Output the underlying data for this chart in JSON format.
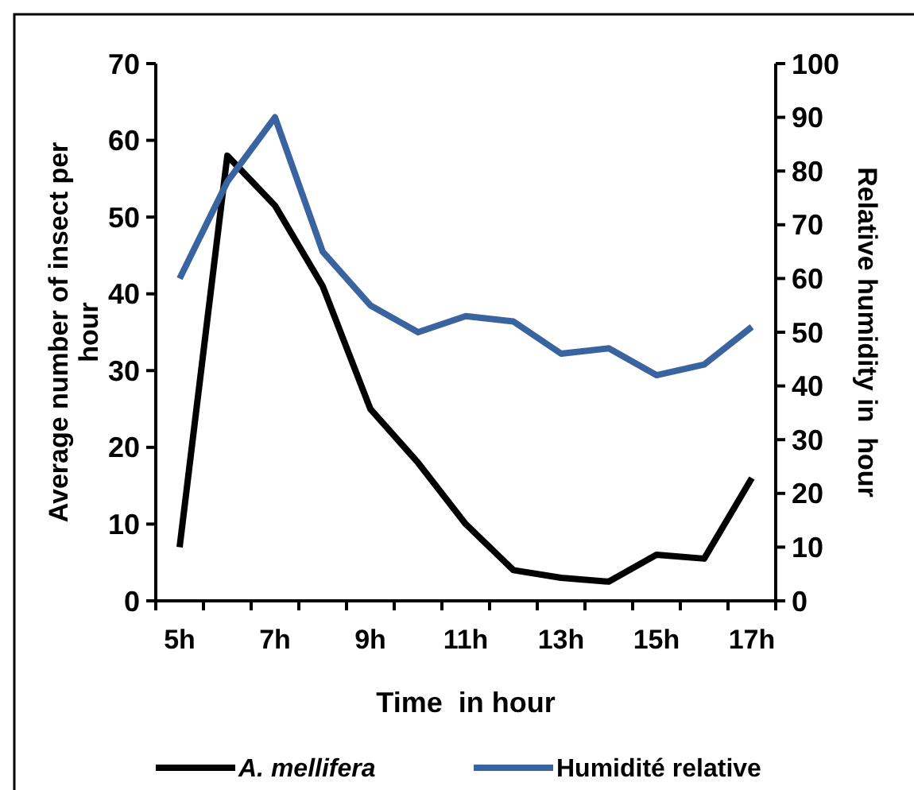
{
  "chart_data": {
    "type": "line",
    "xlabel": "Time  in hour",
    "ylabel": "Average number of insect per hour",
    "y2label": "Relative humidity in  hour",
    "categories": [
      "5h",
      null,
      "7h",
      null,
      "9h",
      null,
      "11h",
      null,
      "13h",
      null,
      "15h",
      null,
      "17h"
    ],
    "series": [
      {
        "name": "A. mellifera",
        "color": "#000000",
        "values": [
          7,
          58,
          51.5,
          41,
          25,
          18,
          10,
          4,
          3,
          2.5,
          6,
          5.5,
          16
        ]
      },
      {
        "name": "Humidité relative",
        "color": "#3a64a0",
        "axis": "y2",
        "values": [
          60,
          78,
          90,
          65,
          55,
          50,
          53,
          52,
          46,
          47,
          42,
          44,
          51
        ]
      }
    ],
    "ylim": [
      0,
      70
    ],
    "yticks": [
      0,
      10,
      20,
      30,
      40,
      50,
      60,
      70
    ],
    "y2lim": [
      0,
      100
    ],
    "y2ticks": [
      0,
      10,
      20,
      30,
      40,
      50,
      60,
      70,
      80,
      90,
      100
    ],
    "legend": "bottom",
    "grid": false,
    "marker": "none",
    "line_style": "solid"
  }
}
